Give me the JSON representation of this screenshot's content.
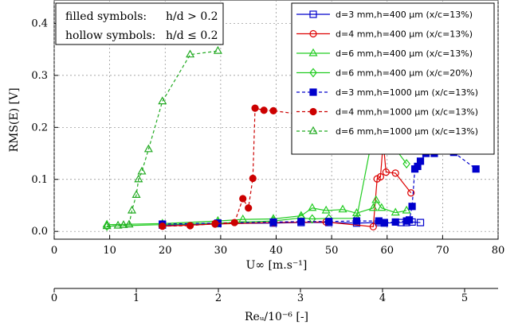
{
  "chart_data": {
    "type": "line",
    "ylabel": "RMS(E) [V]",
    "xlabel": "U∞ [m.s⁻¹]",
    "x2label": "Reᵤ/10⁻⁶ [-]",
    "xlim": [
      0,
      80
    ],
    "ylim": [
      -0.015,
      0.445
    ],
    "x_ticks": [
      0,
      10,
      20,
      30,
      40,
      50,
      60,
      70,
      80
    ],
    "y_ticks": [
      0.0,
      0.1,
      0.2,
      0.3,
      0.4
    ],
    "x2_ticks": [
      0,
      1,
      2,
      3,
      4,
      5
    ],
    "x2_per_x": 0.0676,
    "annotation": {
      "line1_left": "filled symbols:",
      "line1_right": "h/d > 0.2",
      "line2_left": "hollow symbols:",
      "line2_right": "h/d ≤ 0.2"
    },
    "legend_position": "top-right",
    "series": [
      {
        "name": "d=3 mm,h=400 µm (x/c=13%)",
        "color": "#0000cc",
        "marker": "square",
        "filled": false,
        "dashed": false,
        "x": [
          19.5,
          29.5,
          39.5,
          44.5,
          49.5,
          54.5,
          58.5,
          59.5,
          62.5,
          63.5,
          64.5,
          66.0
        ],
        "y": [
          0.012,
          0.015,
          0.016,
          0.017,
          0.017,
          0.016,
          0.017,
          0.016,
          0.017,
          0.017,
          0.018,
          0.017
        ]
      },
      {
        "name": "d=4 mm,h=400 µm (x/c=13%)",
        "color": "#dd0000",
        "marker": "circle",
        "filled": false,
        "dashed": false,
        "x": [
          19.5,
          29.0,
          39.5,
          49.0,
          57.5,
          58.2,
          58.8,
          59.3,
          59.8,
          61.5,
          64.3
        ],
        "y": [
          0.01,
          0.014,
          0.017,
          0.018,
          0.009,
          0.101,
          0.105,
          0.172,
          0.114,
          0.112,
          0.074
        ]
      },
      {
        "name": "d=6 mm,h=400 µm (x/c=13%)",
        "color": "#22cc22",
        "marker": "triangle",
        "filled": false,
        "dashed": false,
        "x": [
          9.5,
          19.5,
          29.5,
          34.0,
          39.5,
          44.5,
          46.5,
          49.0,
          52.0,
          54.5,
          57.5,
          58.0,
          59.0,
          61.5,
          63.5
        ],
        "y": [
          0.013,
          0.015,
          0.02,
          0.023,
          0.024,
          0.03,
          0.045,
          0.04,
          0.042,
          0.035,
          0.045,
          0.06,
          0.045,
          0.036,
          0.04
        ]
      },
      {
        "name": "d=6 mm,h=400 µm (x/c=20%)",
        "color": "#22cc22",
        "marker": "diamond",
        "filled": false,
        "dashed": false,
        "x": [
          9.5,
          19.5,
          29.5,
          39.5,
          44.5,
          46.5,
          49.5,
          54.5,
          57.5,
          60.0,
          63.5
        ],
        "y": [
          0.01,
          0.013,
          0.016,
          0.02,
          0.026,
          0.024,
          0.025,
          0.025,
          0.19,
          0.18,
          0.13
        ]
      },
      {
        "name": "d=3 mm,h=1000 µm (x/c=13%)",
        "color": "#0000cc",
        "marker": "square",
        "filled": true,
        "dashed": true,
        "x": [
          19.5,
          29.5,
          39.5,
          44.5,
          49.5,
          54.5,
          58.5,
          59.5,
          61.5,
          63.5,
          64.0,
          64.5,
          65.0,
          65.5,
          66.0,
          67.0,
          68.5,
          72.0,
          76.0
        ],
        "y": [
          0.014,
          0.016,
          0.018,
          0.019,
          0.019,
          0.02,
          0.02,
          0.017,
          0.018,
          0.02,
          0.022,
          0.048,
          0.12,
          0.125,
          0.135,
          0.15,
          0.15,
          0.152,
          0.12
        ]
      },
      {
        "name": "d=4 mm,h=1000 µm (x/c=13%)",
        "color": "#cc0000",
        "marker": "circle",
        "filled": true,
        "dashed": true,
        "x": [
          19.5,
          24.5,
          29.0,
          32.5,
          34.0,
          35.0,
          35.8,
          36.2,
          37.8,
          39.5,
          44.5,
          49.0,
          57.0
        ],
        "y": [
          0.01,
          0.011,
          0.015,
          0.017,
          0.063,
          0.045,
          0.102,
          0.237,
          0.233,
          0.232,
          0.225,
          0.222,
          0.216
        ]
      },
      {
        "name": "d=6 mm,h=1000 µm (x/c=13%)",
        "color": "#22aa22",
        "marker": "triangle",
        "filled": false,
        "dashed": true,
        "x": [
          9.5,
          11.5,
          12.5,
          13.5,
          14.0,
          14.8,
          15.2,
          15.8,
          17.0,
          19.5,
          24.5,
          29.5
        ],
        "y": [
          0.01,
          0.011,
          0.012,
          0.013,
          0.04,
          0.07,
          0.1,
          0.115,
          0.158,
          0.25,
          0.34,
          0.347
        ]
      }
    ]
  }
}
